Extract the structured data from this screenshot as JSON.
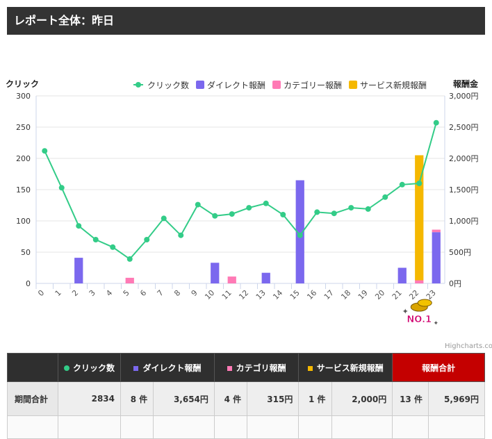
{
  "header": {
    "title": "レポート全体：昨日"
  },
  "chart_data": {
    "type": "bar",
    "left_axis_title": "クリック",
    "right_axis_title": "報酬金",
    "categories": [
      "0",
      "1",
      "2",
      "3",
      "4",
      "5",
      "6",
      "7",
      "8",
      "9",
      "10",
      "11",
      "12",
      "13",
      "14",
      "15",
      "16",
      "17",
      "18",
      "19",
      "20",
      "21",
      "22",
      "23"
    ],
    "left_ticks": [
      "0",
      "50",
      "100",
      "150",
      "200",
      "250",
      "300"
    ],
    "right_ticks": [
      "0円",
      "500円",
      "1,000円",
      "1,500円",
      "2,000円",
      "2,500円",
      "3,000円"
    ],
    "ylim_left": [
      0,
      300
    ],
    "ylim_right": [
      0,
      3000
    ],
    "legend": [
      "クリック数",
      "ダイレクト報酬",
      "カテゴリー報酬",
      "サービス新規報酬"
    ],
    "series": [
      {
        "name": "クリック数",
        "kind": "line",
        "axis": "left",
        "color": "#33cc88",
        "values": [
          212,
          153,
          92,
          70,
          58,
          39,
          70,
          104,
          77,
          126,
          108,
          111,
          121,
          128,
          110,
          77,
          114,
          112,
          121,
          119,
          138,
          158,
          160,
          257
        ]
      },
      {
        "name": "ダイレクト報酬",
        "kind": "bar",
        "axis": "right",
        "color": "#7b68ee",
        "values": [
          0,
          0,
          410,
          0,
          0,
          0,
          0,
          0,
          0,
          0,
          330,
          0,
          0,
          170,
          0,
          1650,
          0,
          0,
          0,
          0,
          0,
          250,
          0,
          820
        ]
      },
      {
        "name": "カテゴリー報酬",
        "kind": "bar",
        "axis": "right",
        "color": "#ff7ab5",
        "values": [
          0,
          0,
          0,
          0,
          0,
          90,
          0,
          0,
          0,
          0,
          0,
          110,
          0,
          0,
          0,
          0,
          0,
          0,
          0,
          0,
          0,
          0,
          50,
          40
        ]
      },
      {
        "name": "サービス新規報酬",
        "kind": "bar",
        "axis": "right",
        "color": "#f5b800",
        "values": [
          0,
          0,
          0,
          0,
          0,
          0,
          0,
          0,
          0,
          0,
          0,
          0,
          0,
          0,
          0,
          0,
          0,
          0,
          0,
          0,
          0,
          0,
          2000,
          0
        ]
      }
    ],
    "badge": {
      "text": "NO.1",
      "category": "22"
    },
    "credits": "Highcharts.com"
  },
  "table": {
    "headers": {
      "clicks": "クリック数",
      "direct": "ダイレクト報酬",
      "category": "カテゴリ報酬",
      "service": "サービス新規報酬",
      "total": "報酬合計"
    },
    "row": {
      "label": "期間合計",
      "clicks": "2834",
      "direct_count": "8 件",
      "direct_amount": "3,654円",
      "category_count": "4 件",
      "category_amount": "315円",
      "service_count": "1 件",
      "service_amount": "2,000円",
      "total_count": "13 件",
      "total_amount": "5,969円"
    }
  }
}
